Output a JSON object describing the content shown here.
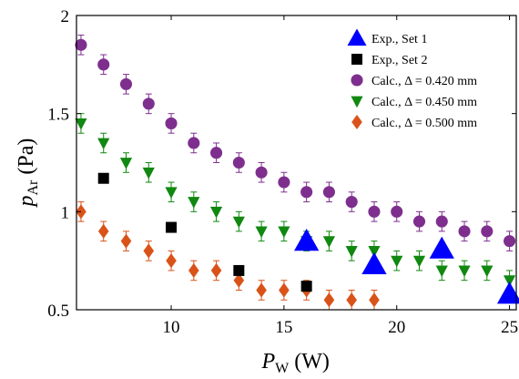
{
  "chart_data": {
    "type": "scatter",
    "xlabel": "P",
    "xlabel_sub": "W",
    "xlabel_unit": "(W)",
    "ylabel": "p",
    "ylabel_sub": "Ar",
    "ylabel_unit": "(Pa)",
    "xlim": [
      5.8,
      25.3
    ],
    "ylim": [
      0.5,
      2
    ],
    "xticks": [
      10,
      15,
      20,
      25
    ],
    "yticks": [
      0.5,
      1,
      1.5,
      2
    ],
    "ytick_labels": [
      "0.5",
      "1",
      "1.5",
      "2"
    ],
    "grid": false,
    "legend_position": "top-right",
    "series": [
      {
        "name": "Exp., Set 1",
        "marker": "triangle-up",
        "color": "#0000ff",
        "errorbars": false,
        "x": [
          16,
          19,
          22,
          25
        ],
        "y": [
          0.85,
          0.73,
          0.81,
          0.58
        ]
      },
      {
        "name": "Exp., Set 2",
        "marker": "square",
        "color": "#000000",
        "errorbars": false,
        "x": [
          7,
          10,
          13,
          16
        ],
        "y": [
          1.17,
          0.92,
          0.7,
          0.62
        ]
      },
      {
        "name": "Calc., Δ = 0.420 mm",
        "marker": "circle",
        "color": "#7e2f8e",
        "errorbars": true,
        "error": 0.05,
        "x": [
          6,
          7,
          8,
          9,
          10,
          11,
          12,
          13,
          14,
          15,
          16,
          17,
          18,
          19,
          20,
          21,
          22,
          23,
          24,
          25
        ],
        "y": [
          1.85,
          1.75,
          1.65,
          1.55,
          1.45,
          1.35,
          1.3,
          1.25,
          1.2,
          1.15,
          1.1,
          1.1,
          1.05,
          1.0,
          1.0,
          0.95,
          0.95,
          0.9,
          0.9,
          0.85
        ]
      },
      {
        "name": "Calc., Δ = 0.450 mm",
        "marker": "triangle-down",
        "color": "#118811",
        "errorbars": true,
        "error": 0.05,
        "x": [
          6,
          7,
          8,
          9,
          10,
          11,
          12,
          13,
          14,
          15,
          16,
          17,
          18,
          19,
          20,
          21,
          22,
          23,
          24,
          25
        ],
        "y": [
          1.45,
          1.35,
          1.25,
          1.2,
          1.1,
          1.05,
          1.0,
          0.95,
          0.9,
          0.9,
          0.85,
          0.85,
          0.8,
          0.8,
          0.75,
          0.75,
          0.7,
          0.7,
          0.7,
          0.65
        ]
      },
      {
        "name": "Calc., Δ = 0.500 mm",
        "marker": "diamond",
        "color": "#d95319",
        "errorbars": true,
        "error": 0.05,
        "x": [
          6,
          7,
          8,
          9,
          10,
          11,
          12,
          13,
          14,
          15,
          16,
          17,
          18,
          19
        ],
        "y": [
          1.0,
          0.9,
          0.85,
          0.8,
          0.75,
          0.7,
          0.7,
          0.65,
          0.6,
          0.6,
          0.6,
          0.55,
          0.55,
          0.55
        ]
      }
    ]
  }
}
